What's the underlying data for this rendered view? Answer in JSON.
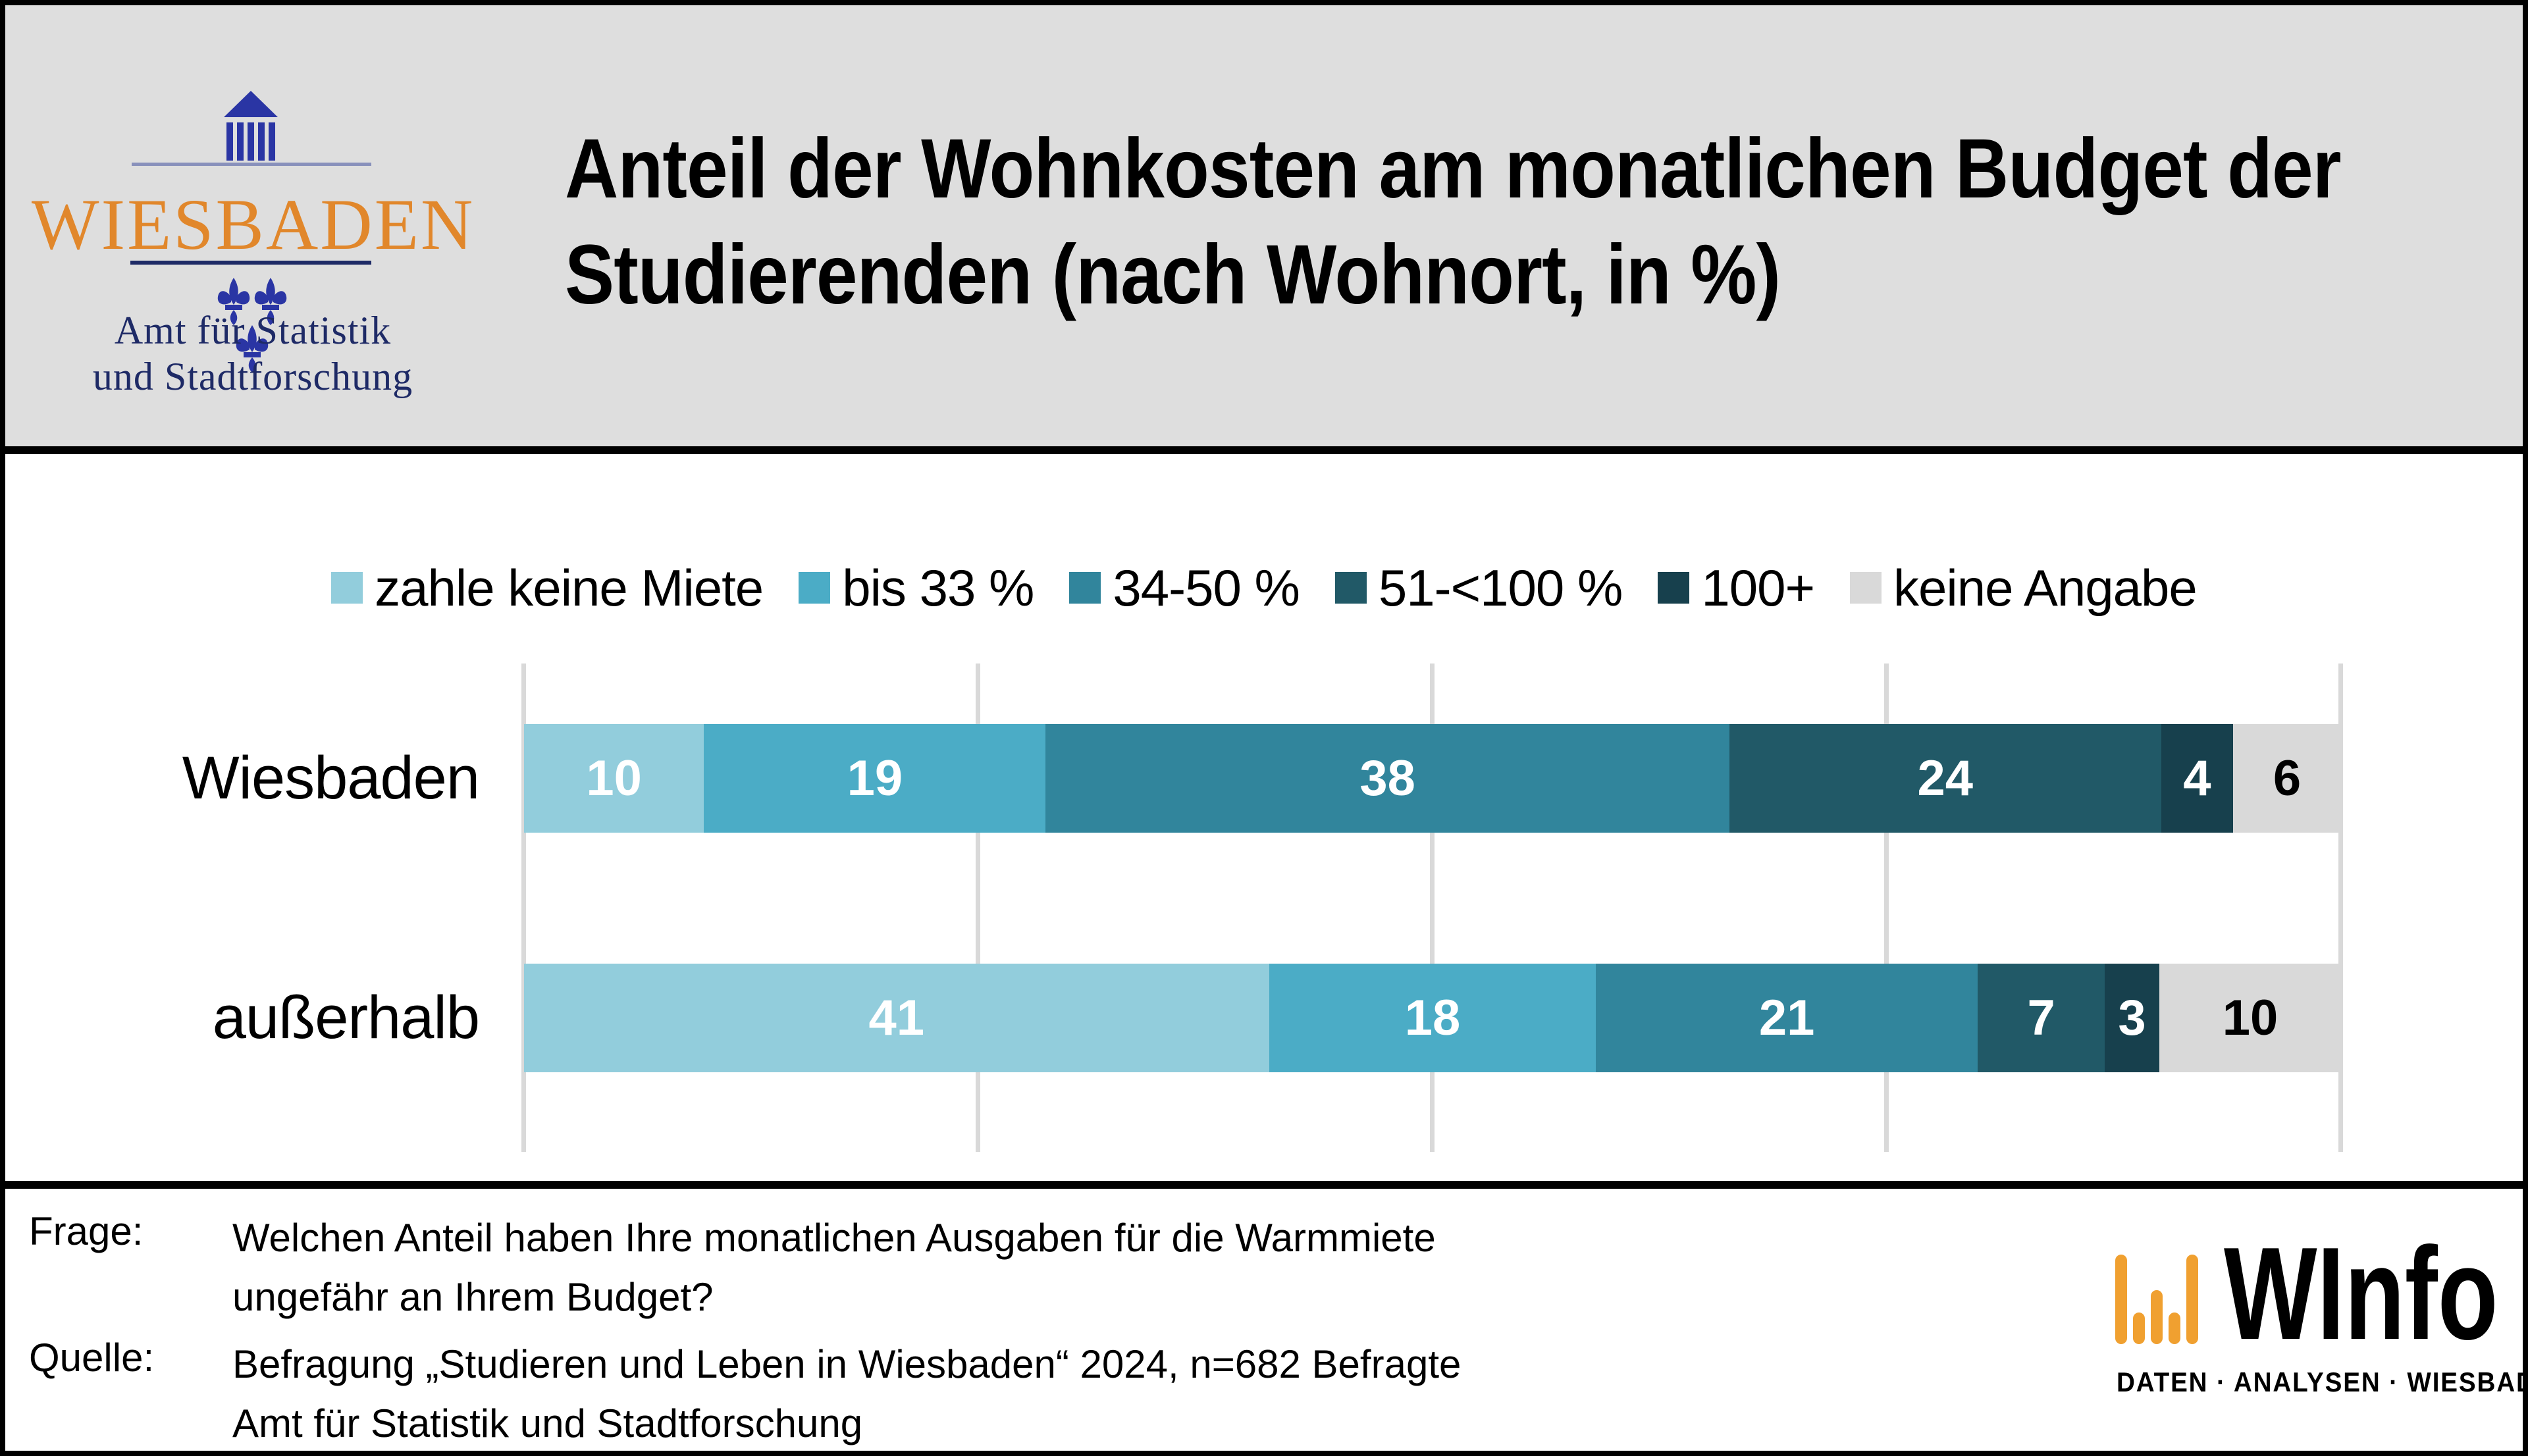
{
  "header": {
    "title_line1": "Anteil der Wohnkosten am monatlichen Budget der",
    "title_line2": "Studierenden (nach Wohnort, in %)",
    "logo": {
      "city": "WIESBADEN",
      "dept_line1": "Amt für Statistik",
      "dept_line2": "und Stadtforschung",
      "icon": "temple-and-fleur-de-lis",
      "colors": {
        "city_orange": "#e1872b",
        "navy": "#1e2a66",
        "royal_blue": "#2a35a4",
        "slate_line": "#8890bb",
        "background_gray": "#dedede"
      }
    }
  },
  "chart_data": {
    "type": "bar",
    "orientation": "horizontal-stacked",
    "unit": "%",
    "title": "Anteil der Wohnkosten am monatlichen Budget der Studierenden (nach Wohnort, in %)",
    "xlim": [
      0,
      100
    ],
    "gridlines_pct": [
      0,
      25,
      50,
      75,
      100
    ],
    "grid_color": "#d9d9d9",
    "legend_position": "top-center",
    "categories": [
      "Wiesbaden",
      "außerhalb"
    ],
    "series": [
      {
        "name": "zahle keine Miete",
        "color": "#92cddc",
        "label_color": "#ffffff",
        "values": [
          10,
          41
        ]
      },
      {
        "name": "bis 33 %",
        "color": "#4bacc6",
        "label_color": "#ffffff",
        "values": [
          19,
          18
        ]
      },
      {
        "name": "34-50 %",
        "color": "#31859c",
        "label_color": "#ffffff",
        "values": [
          38,
          21
        ]
      },
      {
        "name": "51-<100 %",
        "color": "#215967",
        "label_color": "#ffffff",
        "values": [
          24,
          7
        ]
      },
      {
        "name": "100+",
        "color": "#17404d",
        "label_color": "#ffffff",
        "values": [
          4,
          3
        ]
      },
      {
        "name": "keine Angabe",
        "color": "#d9d9d9",
        "label_color": "#000000",
        "values": [
          6,
          10
        ]
      }
    ]
  },
  "footer": {
    "frage_label": "Frage:",
    "frage_line1": "Welchen Anteil haben Ihre monatlichen Ausgaben für die Warmmiete",
    "frage_line2": "ungefähr an Ihrem Budget?",
    "quelle_label": "Quelle:",
    "quelle_line1": "Befragung „Studieren und Leben in Wiesbaden“ 2024, n=682 Befragte",
    "quelle_line2": "Amt für Statistik und Stadtforschung"
  },
  "winfo": {
    "name": "WInfo",
    "tagline": "DATEN · ANALYSEN · WIESBADEN",
    "bar_color": "#f0a030",
    "icon": "bar-chart-icon"
  }
}
